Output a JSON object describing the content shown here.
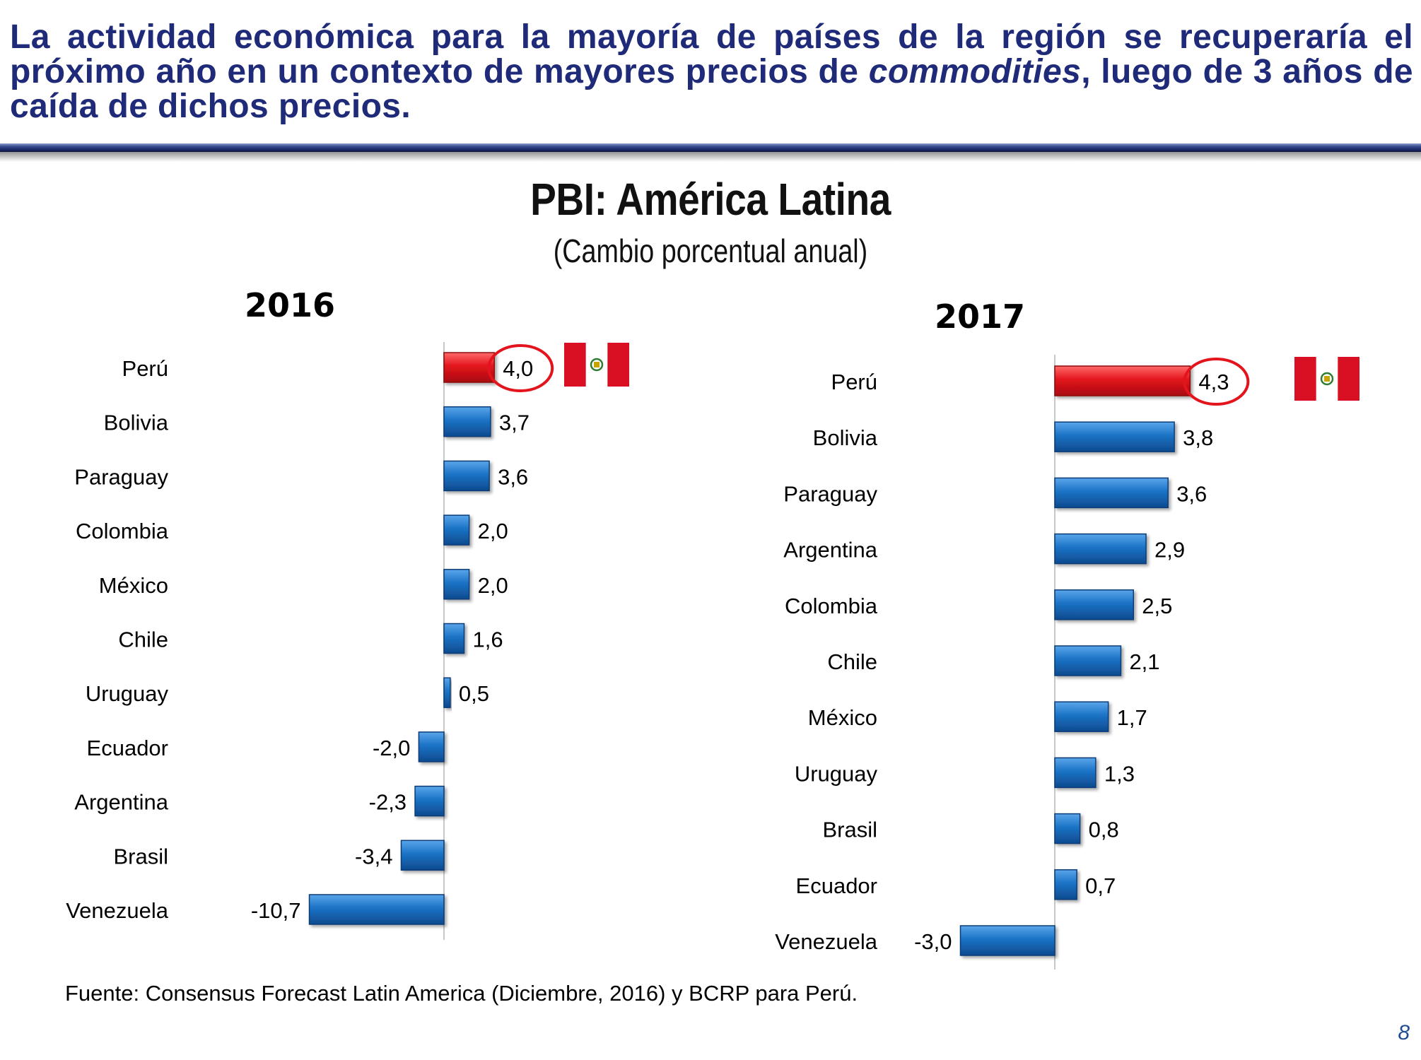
{
  "header": {
    "title_part1": "La actividad económica para la mayoría de países de la región se recuperaría el próximo año en un contexto de mayores precios de ",
    "title_italic": "commodities",
    "title_part2": ", luego de 3 años de caída de dichos precios."
  },
  "chart_title": "PBI: América Latina",
  "chart_subtitle": "(Cambio porcentual anual)",
  "colors": {
    "highlight_bar": "#e3141c",
    "regular_bar": "#1b73c6",
    "highlight_circle": "#e3141c",
    "flag_red": "#d91023"
  },
  "chart_data": [
    {
      "type": "bar",
      "orientation": "horizontal",
      "title": "2016",
      "categories": [
        "Perú",
        "Bolivia",
        "Paraguay",
        "Colombia",
        "México",
        "Chile",
        "Uruguay",
        "Ecuador",
        "Argentina",
        "Brasil",
        "Venezuela"
      ],
      "values": [
        4.0,
        3.7,
        3.6,
        2.0,
        2.0,
        1.6,
        0.5,
        -2.0,
        -2.3,
        -3.4,
        -10.7
      ],
      "value_labels": [
        "4,0",
        "3,7",
        "3,6",
        "2,0",
        "2,0",
        "1,6",
        "0,5",
        "-2,0",
        "-2,3",
        "-3,4",
        "-10,7"
      ],
      "highlight": "Perú",
      "flag": "Perú",
      "xlabel": "",
      "ylabel": ""
    },
    {
      "type": "bar",
      "orientation": "horizontal",
      "title": "2017",
      "categories": [
        "Perú",
        "Bolivia",
        "Paraguay",
        "Argentina",
        "Colombia",
        "Chile",
        "México",
        "Uruguay",
        "Brasil",
        "Ecuador",
        "Venezuela"
      ],
      "values": [
        4.3,
        3.8,
        3.6,
        2.9,
        2.5,
        2.1,
        1.7,
        1.3,
        0.8,
        0.7,
        -3.0
      ],
      "value_labels": [
        "4,3",
        "3,8",
        "3,6",
        "2,9",
        "2,5",
        "2,1",
        "1,7",
        "1,3",
        "0,8",
        "0,7",
        "-3,0"
      ],
      "highlight": "Perú",
      "flag": "Perú",
      "xlabel": "",
      "ylabel": ""
    }
  ],
  "source": "Fuente: Consensus Forecast Latin America  (Diciembre, 2016) y BCRP para Perú.",
  "page_number": "8"
}
